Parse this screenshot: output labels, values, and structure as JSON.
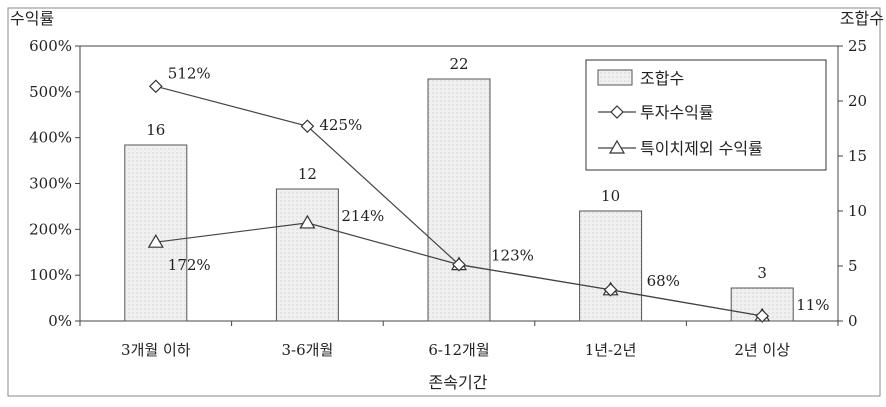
{
  "chart_data": {
    "type": "bar+line",
    "title": "",
    "xlabel": "존속기간",
    "ylabel_left": "수익률",
    "ylabel_right": "조합수",
    "categories": [
      "3개월 이하",
      "3-6개월",
      "6-12개월",
      "1년-2년",
      "2년 이상"
    ],
    "y_left": {
      "min": 0,
      "max": 600,
      "step": 100,
      "ticks": [
        "0%",
        "100%",
        "200%",
        "300%",
        "400%",
        "500%",
        "600%"
      ]
    },
    "y_right": {
      "min": 0,
      "max": 25,
      "step": 5,
      "ticks": [
        "0",
        "5",
        "10",
        "15",
        "20",
        "25"
      ]
    },
    "series": [
      {
        "name": "조합수",
        "type": "bar",
        "axis": "right",
        "values": [
          16,
          12,
          22,
          10,
          3
        ],
        "labels": [
          "16",
          "12",
          "22",
          "10",
          "3"
        ]
      },
      {
        "name": "투자수익률",
        "type": "line",
        "axis": "left",
        "marker": "diamond",
        "values": [
          512,
          425,
          123,
          68,
          11
        ],
        "labels": [
          "512%",
          "425%",
          "123%",
          "68%",
          "11%"
        ]
      },
      {
        "name": "특이치제외 수익률",
        "type": "line",
        "axis": "left",
        "marker": "triangle",
        "values": [
          172,
          214,
          123,
          68,
          11
        ],
        "labels": [
          "172%",
          "214%",
          "",
          "",
          ""
        ]
      }
    ],
    "legend_position": "top-right",
    "grid": false,
    "colors": {
      "bar_fill": "#ececec",
      "bar_stroke": "#555555",
      "line": "#444444"
    }
  }
}
